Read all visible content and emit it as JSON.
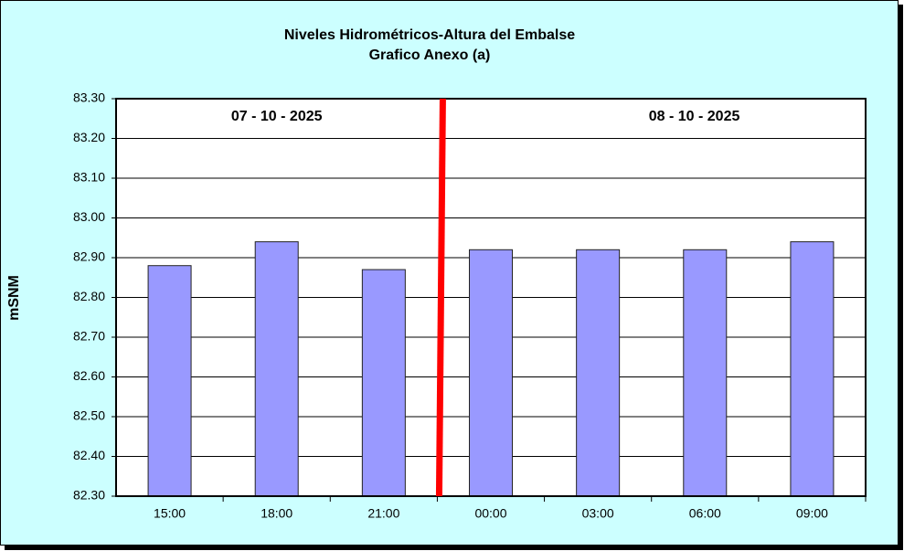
{
  "chart_data": {
    "type": "bar",
    "title": "Niveles Hidrométricos-Altura del Embalse",
    "subtitle": "Grafico Anexo (a)",
    "y_label": "mSNM",
    "annotations": [
      "07 - 10 - 2025",
      "08 - 10 - 2025"
    ],
    "categories": [
      "15:00",
      "18:00",
      "21:00",
      "00:00",
      "03:00",
      "06:00",
      "09:00"
    ],
    "values": [
      82.88,
      82.94,
      82.87,
      82.92,
      82.92,
      82.92,
      82.94
    ],
    "color": "#9999ff",
    "ylim": [
      82.3,
      83.3
    ],
    "yticks": [
      {
        "value": 82.3,
        "label": "82.30"
      },
      {
        "value": 82.4,
        "label": "82.40"
      },
      {
        "value": 82.5,
        "label": "82.50"
      },
      {
        "value": 82.6,
        "label": "82.60"
      },
      {
        "value": 82.7,
        "label": "82.70"
      },
      {
        "value": 82.8,
        "label": "82.80"
      },
      {
        "value": 82.9,
        "label": "82.90"
      },
      {
        "value": 83.0,
        "label": "83.00"
      },
      {
        "value": 83.1,
        "label": "83.10"
      },
      {
        "value": 83.2,
        "label": "83.20"
      },
      {
        "value": 83.3,
        "label": "83.30"
      }
    ],
    "grid": true
  }
}
